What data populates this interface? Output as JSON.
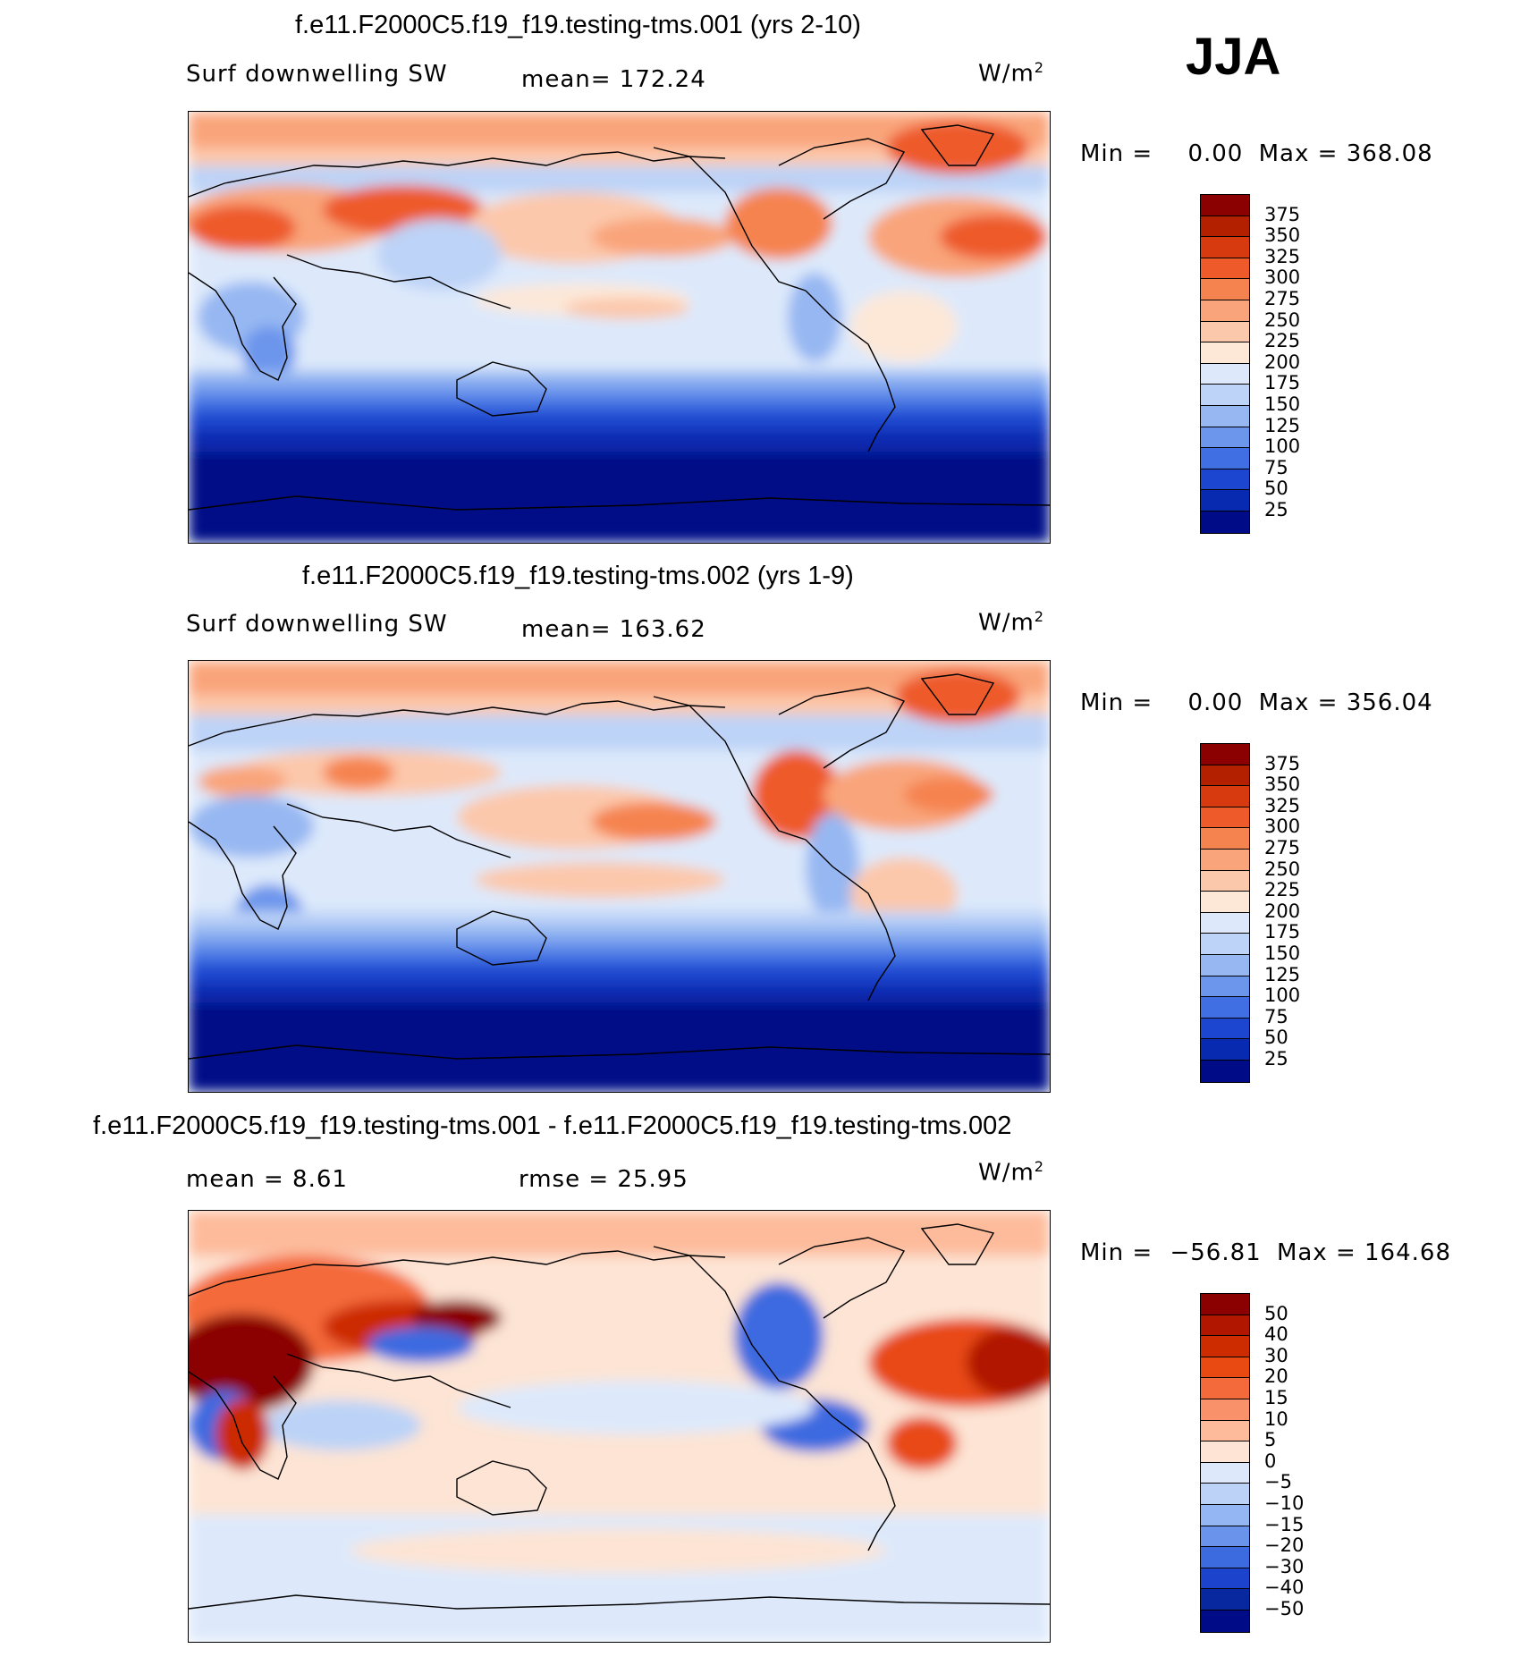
{
  "season": "JJA",
  "panels": [
    {
      "title": "f.e11.F2000C5.f19_f19.testing-tms.001 (yrs 2-10)",
      "left_label": "Surf downwelling SW",
      "center_label": "mean= 172.24",
      "units_base": "W/m",
      "units_exp": "2",
      "min_label": "Min =",
      "min_value": "0.00",
      "max_label": "Max =",
      "max_value": "368.08",
      "colorbar_labels": [
        "375",
        "350",
        "325",
        "300",
        "275",
        "250",
        "225",
        "200",
        "175",
        "150",
        "125",
        "100",
        "75",
        "50",
        "25"
      ]
    },
    {
      "title": "f.e11.F2000C5.f19_f19.testing-tms.002 (yrs 1-9)",
      "left_label": "Surf downwelling SW",
      "center_label": "mean= 163.62",
      "units_base": "W/m",
      "units_exp": "2",
      "min_label": "Min =",
      "min_value": "0.00",
      "max_label": "Max =",
      "max_value": "356.04",
      "colorbar_labels": [
        "375",
        "350",
        "325",
        "300",
        "275",
        "250",
        "225",
        "200",
        "175",
        "150",
        "125",
        "100",
        "75",
        "50",
        "25"
      ]
    },
    {
      "title": "f.e11.F2000C5.f19_f19.testing-tms.001 - f.e11.F2000C5.f19_f19.testing-tms.002",
      "left_label": "mean =    8.61",
      "center_label": "rmse =   25.95",
      "units_base": "W/m",
      "units_exp": "2",
      "min_label": "Min =",
      "min_value": "−56.81",
      "max_label": "Max =",
      "max_value": "164.68",
      "colorbar_labels": [
        "50",
        "40",
        "30",
        "20",
        "15",
        "10",
        "5",
        "0",
        "−5",
        "−10",
        "−15",
        "−20",
        "−30",
        "−40",
        "−50"
      ]
    }
  ],
  "colors": {
    "abs_scale": [
      "#8b0000",
      "#b22000",
      "#d83a10",
      "#ee5a2a",
      "#f5834f",
      "#f9a47a",
      "#fcc8ab",
      "#fde8d8",
      "#dde9fb",
      "#bdd3f7",
      "#96b7f2",
      "#6c95ec",
      "#3f6fe2",
      "#1c46cf",
      "#082ab0",
      "#000c87"
    ],
    "diff_scale": [
      "#8b0000",
      "#b11600",
      "#cc2c00",
      "#e84a12",
      "#f46a3a",
      "#f9926a",
      "#fdbb9b",
      "#fde4d4",
      "#dde9fb",
      "#bcd3f7",
      "#94b6f2",
      "#6a93ec",
      "#3c6be0",
      "#1b43cc",
      "#07289e",
      "#000c87"
    ]
  }
}
